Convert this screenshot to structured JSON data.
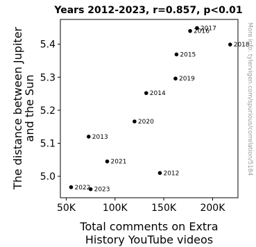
{
  "chart_data": {
    "type": "scatter",
    "title": "Years 2012-2023, r=0.857, p<0.01",
    "xlabel": [
      "Total comments on Extra",
      "History YouTube videos"
    ],
    "ylabel": [
      "The distance between Jupiter",
      "and the Sun"
    ],
    "side_note": "More info: tylervigen.com/spurious/correlation/5184",
    "xlim": [
      44000,
      226000
    ],
    "ylim": [
      4.935,
      5.475
    ],
    "x_ticks": [
      50000,
      100000,
      150000,
      200000
    ],
    "x_tick_labels": [
      "50K",
      "100K",
      "150K",
      "200K"
    ],
    "y_ticks": [
      5.0,
      5.1,
      5.2,
      5.3,
      5.4
    ],
    "y_tick_labels": [
      "5.0",
      "5.1",
      "5.2",
      "5.3",
      "5.4"
    ],
    "grid": false,
    "point_color": "#000000",
    "points": [
      {
        "label": "2012",
        "x": 146000,
        "y": 5.01
      },
      {
        "label": "2013",
        "x": 73000,
        "y": 5.12
      },
      {
        "label": "2014",
        "x": 132000,
        "y": 5.252
      },
      {
        "label": "2015",
        "x": 163000,
        "y": 5.369
      },
      {
        "label": "2016",
        "x": 177000,
        "y": 5.44
      },
      {
        "label": "2017",
        "x": 184000,
        "y": 5.449
      },
      {
        "label": "2018",
        "x": 218000,
        "y": 5.399
      },
      {
        "label": "2019",
        "x": 162000,
        "y": 5.296
      },
      {
        "label": "2020",
        "x": 120000,
        "y": 5.166
      },
      {
        "label": "2021",
        "x": 92000,
        "y": 5.045
      },
      {
        "label": "2022",
        "x": 55000,
        "y": 4.967
      },
      {
        "label": "2023",
        "x": 75000,
        "y": 4.961
      }
    ]
  }
}
